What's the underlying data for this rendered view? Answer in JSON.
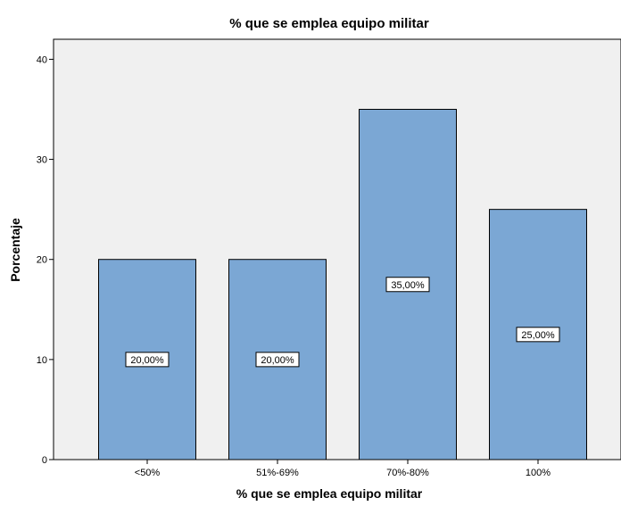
{
  "chart_data": {
    "type": "bar",
    "title": "% que se emplea equipo militar",
    "xlabel": "% que se emplea equipo militar",
    "ylabel": "Porcentaje",
    "categories": [
      "<50%",
      "51%-69%",
      "70%-80%",
      "100%"
    ],
    "values": [
      20,
      20,
      35,
      25
    ],
    "data_labels": [
      "20,00%",
      "20,00%",
      "35,00%",
      "25,00%"
    ],
    "ylim": [
      0,
      42
    ],
    "yticks": [
      "0",
      "10",
      "20",
      "30",
      "40"
    ],
    "grid": false,
    "colors": {
      "bar": "#7ba7d4",
      "plot_bg": "#f0f0f0"
    }
  }
}
